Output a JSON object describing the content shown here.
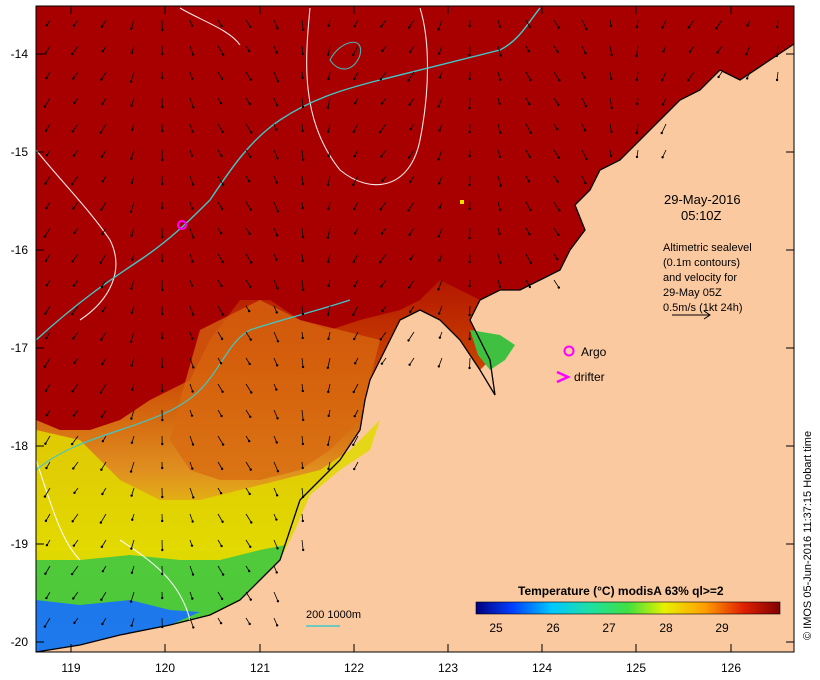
{
  "map": {
    "date_label": "29-May-2016",
    "time_label": "05:10Z",
    "altimetry_lines": [
      "Altimetric sealevel",
      "(0.1m contours)",
      "and velocity for",
      "29-May 05Z",
      "0.5m/s (1kt 24h)"
    ],
    "legend_argo": "Argo",
    "legend_drifter": "drifter",
    "depth_label": "200  1000m",
    "colorbar_title": "Temperature (°C) modisA 63% ql>=2",
    "colorbar_ticks": [
      "25",
      "26",
      "27",
      "28",
      "29"
    ],
    "credit": "© IMOS 05-Jun-2016 11:37:15 Hobart time",
    "lat_ticks": [
      "-14",
      "-15",
      "-16",
      "-17",
      "-18",
      "-19",
      "-20"
    ],
    "lon_ticks": [
      "119",
      "120",
      "121",
      "122",
      "123",
      "124",
      "125",
      "126"
    ],
    "colors": {
      "land": "#fbc9a0",
      "hot": "#a80000",
      "warm": "#c83c00",
      "mid": "#e08a10",
      "cool": "#e8e000",
      "green": "#3cd040",
      "blue": "#1060ff",
      "current_line": "#40c8c8",
      "contour": "#ffffff",
      "marker": "#ff00ff"
    }
  }
}
